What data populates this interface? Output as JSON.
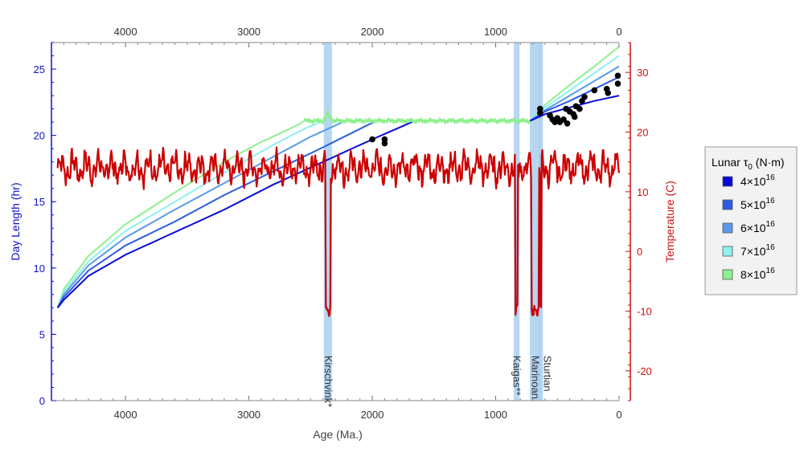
{
  "chart_data": {
    "type": "line",
    "xlabel": "Age (Ma.)",
    "ylabel_left": "Day Length (hr)",
    "ylabel_right": "Temperature (C)",
    "x_range": [
      4600,
      0
    ],
    "x_ticks": [
      4000,
      3000,
      2000,
      1000,
      0
    ],
    "y_left_range": [
      0,
      27
    ],
    "y_left_ticks": [
      0,
      5,
      10,
      15,
      20,
      25
    ],
    "y_right_range": [
      -25,
      35
    ],
    "y_right_ticks": [
      -20,
      -10,
      0,
      10,
      20,
      30
    ],
    "colors": {
      "left_axis": "#1010cc",
      "right_axis": "#cc1111",
      "temperature": "#cc0000",
      "glaciation_band": "#a9cff0",
      "data_points": "#000000",
      "legend_border": "#999999",
      "legend_bg": "#f2f2f2"
    },
    "legend": {
      "title_prefix": "Lunar τ",
      "title_sub": "0",
      "title_suffix": "(N·m)",
      "placement": "right",
      "entries": [
        {
          "label": "4×10",
          "exp": "16",
          "color": "#0a0ad6"
        },
        {
          "label": "5×10",
          "exp": "16",
          "color": "#2b5ce6"
        },
        {
          "label": "6×10",
          "exp": "16",
          "color": "#5a9ae8"
        },
        {
          "label": "7×10",
          "exp": "16",
          "color": "#8ef0f0"
        },
        {
          "label": "8×10",
          "exp": "16",
          "color": "#8ef08e"
        }
      ]
    },
    "glaciations": [
      {
        "name": "Kirschvink*",
        "start": 2380,
        "end": 2340
      },
      {
        "name": "Kaigas**",
        "start": 840,
        "end": 820
      },
      {
        "name": "Marinoan",
        "start": 710,
        "end": 650
      },
      {
        "name": "Sturtian",
        "start": 640,
        "end": 630
      }
    ],
    "series": [
      {
        "tau": "4×10^16",
        "x": [
          4550,
          4500,
          4300,
          4000,
          3600,
          3200,
          2800,
          2400,
          2000,
          1680
        ],
        "y": [
          7.0,
          7.6,
          9.4,
          11.0,
          12.7,
          14.4,
          16.3,
          18.0,
          19.7,
          21.0
        ]
      },
      {
        "tau": "5×10^16",
        "x": [
          4550,
          4500,
          4300,
          4000,
          3600,
          3200,
          2800,
          2400,
          1990
        ],
        "y": [
          7.0,
          7.8,
          9.8,
          11.7,
          13.5,
          15.5,
          17.3,
          19.1,
          21.0
        ]
      },
      {
        "tau": "6×10^16",
        "x": [
          4550,
          4500,
          4300,
          4000,
          3600,
          3200,
          2800,
          2500,
          2240
        ],
        "y": [
          7.0,
          8.0,
          10.2,
          12.3,
          14.4,
          16.4,
          18.4,
          19.9,
          21.0
        ]
      },
      {
        "tau": "7×10^16",
        "x": [
          4550,
          4500,
          4300,
          4000,
          3600,
          3200,
          2800,
          2550,
          2420
        ],
        "y": [
          7.0,
          8.2,
          10.5,
          12.8,
          15.0,
          17.2,
          19.3,
          20.5,
          21.0
        ]
      },
      {
        "tau": "8×10^16",
        "x": [
          4550,
          4500,
          4300,
          4000,
          3600,
          3200,
          2900,
          2600,
          2550
        ],
        "y": [
          7.0,
          8.4,
          10.9,
          13.3,
          15.7,
          18.0,
          19.5,
          20.8,
          21.1
        ]
      }
    ],
    "plateau": {
      "x_start": 2550,
      "x_end": 720,
      "y": 21.1
    },
    "recent_branches": [
      {
        "tau": "4×10^16",
        "x": [
          720,
          600,
          400,
          200,
          0
        ],
        "y": [
          21.1,
          21.6,
          22.1,
          22.6,
          23.0
        ]
      },
      {
        "tau": "5×10^16",
        "x": [
          720,
          600,
          400,
          200,
          0
        ],
        "y": [
          21.1,
          21.8,
          22.6,
          23.5,
          24.4
        ]
      },
      {
        "tau": "6×10^16",
        "x": [
          720,
          600,
          400,
          200,
          0
        ],
        "y": [
          21.1,
          21.9,
          23.0,
          24.1,
          25.2
        ]
      },
      {
        "tau": "7×10^16",
        "x": [
          720,
          600,
          400,
          200,
          0
        ],
        "y": [
          21.1,
          22.1,
          23.4,
          24.7,
          26.0
        ]
      },
      {
        "tau": "8×10^16",
        "x": [
          720,
          600,
          400,
          200,
          0
        ],
        "y": [
          21.1,
          22.3,
          23.8,
          25.2,
          26.7
        ]
      }
    ],
    "temperature_baseline": 14,
    "temperature_series_start": 4550,
    "data_points": [
      {
        "x": 2000,
        "y": 19.7
      },
      {
        "x": 1900,
        "y": 19.7
      },
      {
        "x": 1900,
        "y": 19.4
      },
      {
        "x": 640,
        "y": 22.0
      },
      {
        "x": 640,
        "y": 21.7
      },
      {
        "x": 560,
        "y": 21.5
      },
      {
        "x": 540,
        "y": 21.2
      },
      {
        "x": 520,
        "y": 21.0
      },
      {
        "x": 500,
        "y": 21.3
      },
      {
        "x": 480,
        "y": 21.0
      },
      {
        "x": 450,
        "y": 21.2
      },
      {
        "x": 420,
        "y": 20.9
      },
      {
        "x": 430,
        "y": 22.0
      },
      {
        "x": 400,
        "y": 21.8
      },
      {
        "x": 370,
        "y": 21.6
      },
      {
        "x": 360,
        "y": 21.4
      },
      {
        "x": 350,
        "y": 22.2
      },
      {
        "x": 320,
        "y": 22.0
      },
      {
        "x": 300,
        "y": 22.6
      },
      {
        "x": 280,
        "y": 22.9
      },
      {
        "x": 200,
        "y": 23.4
      },
      {
        "x": 100,
        "y": 23.5
      },
      {
        "x": 90,
        "y": 23.2
      },
      {
        "x": 10,
        "y": 24.5
      },
      {
        "x": 10,
        "y": 23.9
      }
    ]
  }
}
